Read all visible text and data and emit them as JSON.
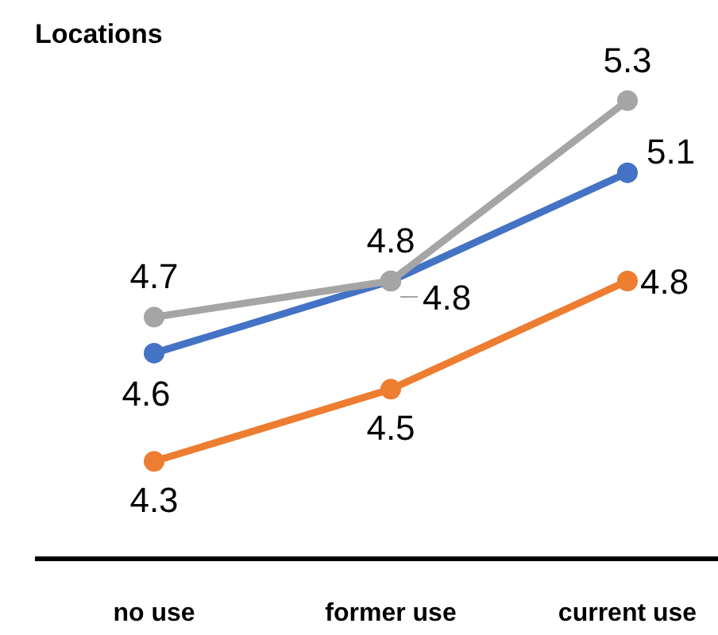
{
  "chart_data": {
    "type": "line",
    "title": "Locations",
    "categories": [
      "no use",
      "former use",
      "current use"
    ],
    "series": [
      {
        "color": "#4472c4",
        "values": [
          4.6,
          4.8,
          5.1
        ]
      },
      {
        "color": "#ed7d31",
        "values": [
          4.3,
          4.5,
          4.8
        ]
      },
      {
        "color": "#a5a5a5",
        "values": [
          4.7,
          4.8,
          5.3
        ]
      }
    ],
    "data_labels": true,
    "marker": "circle",
    "grid": false
  }
}
